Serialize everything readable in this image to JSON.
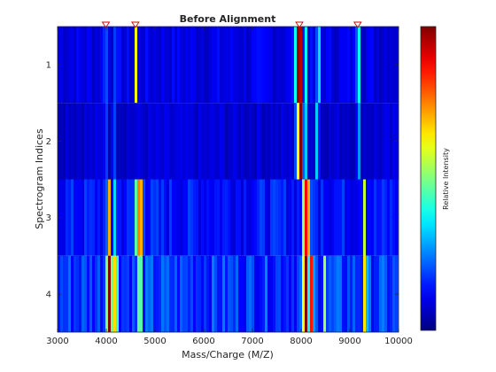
{
  "chart_data": {
    "type": "heatmap",
    "title": "Before Alignment",
    "xlabel": "Mass/Charge (M/Z)",
    "ylabel": "Spectrogram Indices",
    "colorbar_label": "Relative Intensity",
    "colormap": "jet",
    "xlim": [
      3000,
      10000
    ],
    "ylim": [
      0.5,
      4.5
    ],
    "x_ticks": [
      3000,
      4000,
      5000,
      6000,
      7000,
      8000,
      9000,
      10000
    ],
    "y_ticks": [
      1,
      2,
      3,
      4
    ],
    "reference_peaks": [
      3991,
      4598,
      7964,
      9160
    ],
    "rows": [
      {
        "index": 1,
        "background": 0.1,
        "peaks": [
          {
            "mz": 3982,
            "intensity": 0.62,
            "width": 14
          },
          {
            "mz": 4188,
            "intensity": 0.22,
            "width": 14
          },
          {
            "mz": 4603,
            "intensity": 0.55,
            "width": 16
          },
          {
            "mz": 7860,
            "intensity": 0.48,
            "width": 16
          },
          {
            "mz": 7925,
            "intensity": 0.62,
            "width": 20
          },
          {
            "mz": 7975,
            "intensity": 1.0,
            "width": 28
          },
          {
            "mz": 8105,
            "intensity": 0.3,
            "width": 14
          },
          {
            "mz": 8350,
            "intensity": 0.88,
            "width": 14
          },
          {
            "mz": 9170,
            "intensity": 0.55,
            "width": 20
          }
        ]
      },
      {
        "index": 2,
        "background": 0.08,
        "peaks": [
          {
            "mz": 3985,
            "intensity": 0.5,
            "width": 14
          },
          {
            "mz": 4185,
            "intensity": 0.2,
            "width": 14
          },
          {
            "mz": 7915,
            "intensity": 0.5,
            "width": 20
          },
          {
            "mz": 7985,
            "intensity": 1.0,
            "width": 30
          },
          {
            "mz": 8110,
            "intensity": 0.35,
            "width": 14
          },
          {
            "mz": 8340,
            "intensity": 0.85,
            "width": 14
          },
          {
            "mz": 9175,
            "intensity": 0.25,
            "width": 18
          }
        ]
      },
      {
        "index": 3,
        "background": 0.14,
        "peaks": [
          {
            "mz": 4050,
            "intensity": 0.8,
            "width": 16
          },
          {
            "mz": 4180,
            "intensity": 0.25,
            "width": 14
          },
          {
            "mz": 4650,
            "intensity": 0.55,
            "width": 40
          },
          {
            "mz": 4720,
            "intensity": 0.45,
            "width": 30
          },
          {
            "mz": 8080,
            "intensity": 0.88,
            "width": 28
          },
          {
            "mz": 8150,
            "intensity": 0.55,
            "width": 16
          },
          {
            "mz": 8230,
            "intensity": 0.3,
            "width": 14
          },
          {
            "mz": 8450,
            "intensity": 0.25,
            "width": 14
          },
          {
            "mz": 9300,
            "intensity": 0.45,
            "width": 24
          }
        ]
      },
      {
        "index": 4,
        "background": 0.18,
        "peaks": [
          {
            "mz": 4060,
            "intensity": 0.95,
            "width": 36
          },
          {
            "mz": 4190,
            "intensity": 0.5,
            "width": 34
          },
          {
            "mz": 4690,
            "intensity": 0.55,
            "width": 22
          },
          {
            "mz": 8090,
            "intensity": 0.98,
            "width": 34
          },
          {
            "mz": 8210,
            "intensity": 0.62,
            "width": 26
          },
          {
            "mz": 8470,
            "intensity": 0.5,
            "width": 16
          },
          {
            "mz": 9310,
            "intensity": 0.55,
            "width": 22
          }
        ]
      }
    ]
  }
}
